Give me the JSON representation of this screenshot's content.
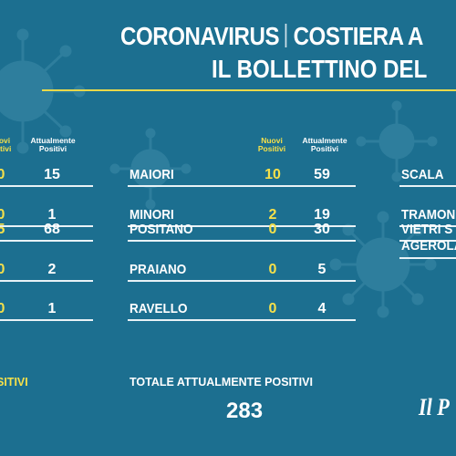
{
  "title": {
    "left": "CORONAVIRUS",
    "right": "COSTIERA A"
  },
  "subtitle": "IL BOLLETTINO DEL ",
  "headers": {
    "nuovi_top": "Nuovi",
    "nuovi_bottom": "Positivi",
    "attual_top": "Attualmente",
    "attual_bottom": "Positivi",
    "nuovi_left_partial_top": "ovi",
    "nuovi_left_partial_bottom": "itivi"
  },
  "left_column": [
    {
      "nuovi": "0",
      "attualmente": "15"
    },
    {
      "nuovi": "0",
      "attualmente": "1"
    },
    {
      "nuovi": "5",
      "attualmente": "68"
    },
    {
      "nuovi": "0",
      "attualmente": "2"
    },
    {
      "nuovi": "0",
      "attualmente": "1"
    }
  ],
  "center_column": [
    {
      "name": "MAIORI",
      "nuovi": "10",
      "attualmente": "59"
    },
    {
      "name": "MINORI",
      "nuovi": "2",
      "attualmente": "19"
    },
    {
      "name": "POSITANO",
      "nuovi": "0",
      "attualmente": "30"
    },
    {
      "name": "PRAIANO",
      "nuovi": "0",
      "attualmente": "5"
    },
    {
      "name": "RAVELLO",
      "nuovi": "0",
      "attualmente": "4"
    }
  ],
  "right_column": [
    {
      "name": "SCALA"
    },
    {
      "name": "TRAMON"
    },
    {
      "name": "VIETRI S"
    },
    {
      "name": "AGEROLA"
    }
  ],
  "footer": {
    "left_partial": "SITIVI",
    "totale_label": "TOTALE ATTUALMENTE POSITIVI",
    "totale_value": "283",
    "logo_text": "Il P"
  },
  "colors": {
    "background": "#1c6f90",
    "accent": "#f5e04a"
  }
}
